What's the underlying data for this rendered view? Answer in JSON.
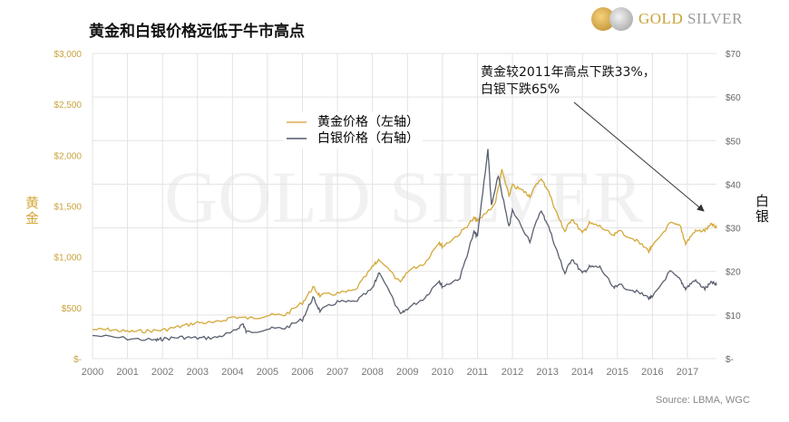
{
  "title": "黄金和白银价格远低于牛市高点",
  "logo": {
    "text_gold": "GOLD",
    "text_silver": "SILVER"
  },
  "watermark": "GOLD SILVER",
  "source": "Source: LBMA, WGC",
  "annotation": {
    "line1": "黄金较2011年高点下跌33%，",
    "line2": "白银下跌65%"
  },
  "colors": {
    "gold": "#d4a93a",
    "silver": "#5a6070",
    "grid": "#e3e3e3"
  },
  "chart_data": {
    "type": "line",
    "title": "黄金和白银价格远低于牛市高点",
    "ylabel_left": "黄金",
    "ylabel_right": "白银",
    "xlim": [
      2000,
      2017.83
    ],
    "ylim_left": [
      0,
      3000
    ],
    "ylim_right": [
      0,
      70
    ],
    "grid": true,
    "legend_placement": "top-center",
    "x_ticks": [
      "2000",
      "2001",
      "2002",
      "2003",
      "2004",
      "2005",
      "2006",
      "2007",
      "2008",
      "2009",
      "2010",
      "2011",
      "2012",
      "2013",
      "2014",
      "2015",
      "2016",
      "2017"
    ],
    "y_ticks_left": [
      "$-",
      "$500",
      "$1,000",
      "$1,500",
      "$2,000",
      "$2,500",
      "$3,000"
    ],
    "y_ticks_right": [
      "$-",
      "$10",
      "$20",
      "$30",
      "$40",
      "$50",
      "$60",
      "$70"
    ],
    "series": [
      {
        "name": "黄金价格（左轴）",
        "axis": "left",
        "x": [
          2000,
          2000.5,
          2001,
          2001.5,
          2002,
          2002.5,
          2003,
          2003.5,
          2004,
          2004.5,
          2005,
          2005.5,
          2006,
          2006.3,
          2006.5,
          2007,
          2007.5,
          2008,
          2008.2,
          2008.8,
          2009,
          2009.5,
          2009.9,
          2010,
          2010.5,
          2010.9,
          2011,
          2011.5,
          2011.7,
          2011.9,
          2012,
          2012.3,
          2012.5,
          2012.8,
          2013,
          2013.3,
          2013.5,
          2013.7,
          2014,
          2014.2,
          2014.5,
          2014.9,
          2015,
          2015.5,
          2015.9,
          2016,
          2016.5,
          2016.8,
          2016.95,
          2017.2,
          2017.5,
          2017.7,
          2017.83
        ],
        "values": [
          285,
          285,
          265,
          270,
          280,
          315,
          355,
          350,
          410,
          395,
          425,
          430,
          550,
          700,
          620,
          640,
          670,
          900,
          980,
          740,
          860,
          940,
          1150,
          1100,
          1230,
          1380,
          1350,
          1520,
          1850,
          1600,
          1700,
          1650,
          1600,
          1770,
          1670,
          1400,
          1250,
          1380,
          1230,
          1330,
          1300,
          1200,
          1260,
          1170,
          1060,
          1100,
          1330,
          1300,
          1130,
          1250,
          1260,
          1320,
          1280
        ]
      },
      {
        "name": "白银价格（右轴）",
        "axis": "right",
        "x": [
          2000,
          2001,
          2001.8,
          2002,
          2002.5,
          2003,
          2003.5,
          2004,
          2004.3,
          2004.4,
          2005,
          2005.5,
          2006,
          2006.3,
          2006.5,
          2007,
          2007.5,
          2008,
          2008.2,
          2008.8,
          2009,
          2009.5,
          2009.9,
          2010,
          2010.5,
          2010.9,
          2011,
          2011.3,
          2011.4,
          2011.6,
          2011.9,
          2012,
          2012.5,
          2012.8,
          2013,
          2013.3,
          2013.5,
          2013.7,
          2014,
          2014.2,
          2014.5,
          2014.9,
          2015,
          2015.5,
          2015.9,
          2016,
          2016.5,
          2016.8,
          2016.95,
          2017.2,
          2017.5,
          2017.7,
          2017.83
        ],
        "values": [
          5.3,
          4.6,
          4.2,
          4.5,
          4.9,
          4.7,
          4.8,
          6.0,
          8.0,
          6.0,
          6.8,
          7.0,
          9.0,
          14.0,
          11.0,
          13.0,
          13.0,
          16,
          20,
          10,
          11.5,
          14,
          18,
          16.5,
          18.5,
          29,
          28,
          48,
          35,
          42,
          30,
          34,
          27,
          34,
          31,
          24,
          19.5,
          23,
          19.5,
          21,
          21,
          16,
          17,
          15.5,
          14,
          14,
          20,
          18,
          16,
          18,
          16,
          17.5,
          16.8
        ]
      }
    ]
  }
}
